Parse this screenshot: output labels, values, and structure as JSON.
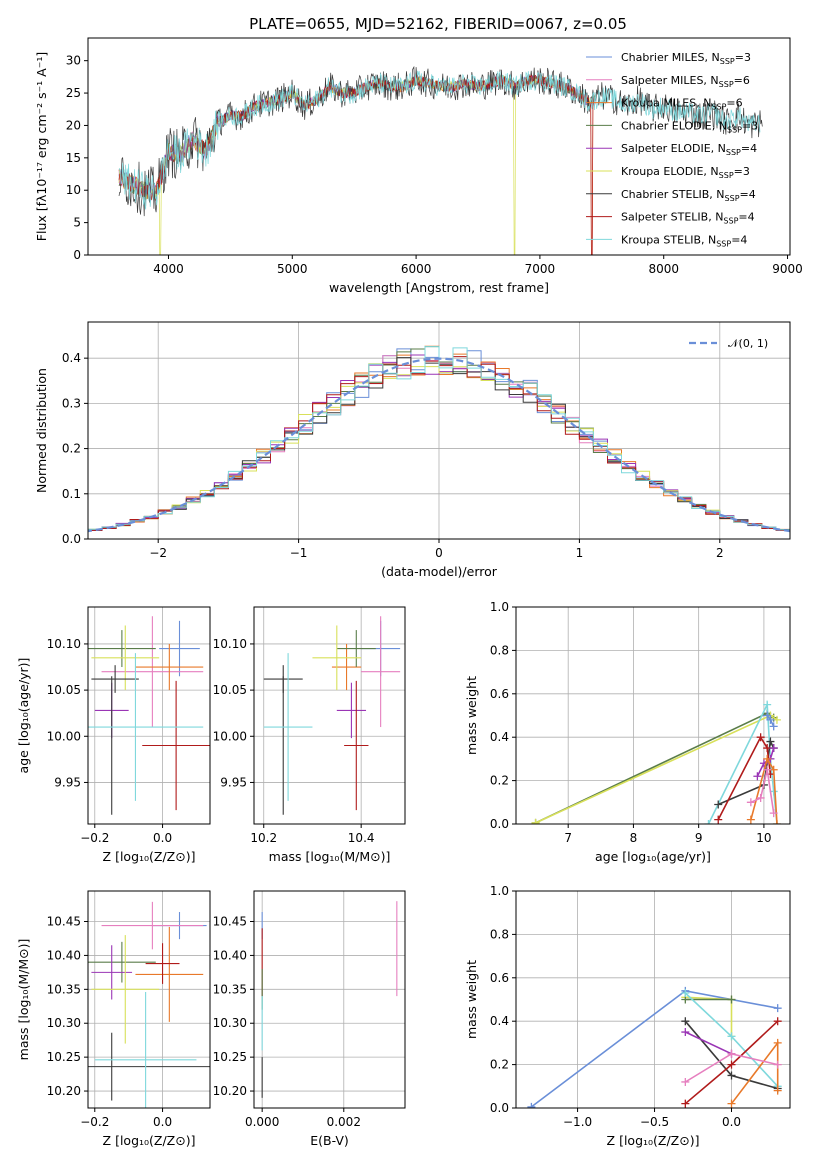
{
  "figure_title": "PLATE=0655, MJD=52162, FIBERID=0067, z=0.05",
  "colors": {
    "chabrier_miles": "#6a8fd8",
    "salpeter_miles": "#e67fbf",
    "kroupa_miles": "#e8792a",
    "chabrier_elodie": "#5a7d4a",
    "salpeter_elodie": "#9a35b5",
    "kroupa_elodie": "#d8e05a",
    "chabrier_stelib": "#3a3a3a",
    "salpeter_stelib": "#b01b1b",
    "kroupa_stelib": "#7fd8dc",
    "grid": "#b0b0b0"
  },
  "chart_data": [
    {
      "id": "spectrum",
      "type": "line",
      "xlabel": "wavelength [Angstrom, rest frame]",
      "ylabel": "Flux [fλ10⁻¹⁷ erg cm⁻² s⁻¹ A⁻¹]",
      "xlim": [
        3350,
        9020
      ],
      "ylim": [
        0,
        33.5
      ],
      "xticks": [
        "4000",
        "5000",
        "6000",
        "7000",
        "8000",
        "9000"
      ],
      "yticks": [
        "0",
        "5",
        "10",
        "15",
        "20",
        "25",
        "30"
      ],
      "grid": false,
      "legend_position": "top-right",
      "legend": [
        {
          "label": "Chabrier MILES, N",
          "sub": "SSP",
          "tail": "=3",
          "color_key": "chabrier_miles"
        },
        {
          "label": "Salpeter MILES, N",
          "sub": "SSP",
          "tail": "=6",
          "color_key": "salpeter_miles"
        },
        {
          "label": "Kroupa MILES, N",
          "sub": "SSP",
          "tail": "=6",
          "color_key": "kroupa_miles"
        },
        {
          "label": "Chabrier ELODIE, N",
          "sub": "SSP",
          "tail": "=3",
          "color_key": "chabrier_elodie"
        },
        {
          "label": "Salpeter ELODIE, N",
          "sub": "SSP",
          "tail": "=4",
          "color_key": "salpeter_elodie"
        },
        {
          "label": "Kroupa ELODIE, N",
          "sub": "SSP",
          "tail": "=3",
          "color_key": "kroupa_elodie"
        },
        {
          "label": "Chabrier STELIB, N",
          "sub": "SSP",
          "tail": "=4",
          "color_key": "chabrier_stelib"
        },
        {
          "label": "Salpeter STELIB, N",
          "sub": "SSP",
          "tail": "=4",
          "color_key": "salpeter_stelib"
        },
        {
          "label": "Kroupa STELIB, N",
          "sub": "SSP",
          "tail": "=4",
          "color_key": "kroupa_stelib"
        }
      ],
      "envelope_x": [
        3600,
        3700,
        3800,
        3900,
        4000,
        4100,
        4200,
        4300,
        4400,
        4500,
        4600,
        4700,
        4800,
        4900,
        5000,
        5100,
        5200,
        5300,
        5400,
        5500,
        5600,
        5700,
        5800,
        5900,
        6000,
        6100,
        6200,
        6300,
        6400,
        6500,
        6600,
        6700,
        6800,
        6900,
        7000,
        7100,
        7200,
        7300,
        7400,
        7500,
        7600,
        7700,
        7800,
        7900,
        8000,
        8100,
        8200,
        8300,
        8400,
        8500,
        8600,
        8700,
        8800
      ],
      "envelope_y": [
        12,
        11,
        10,
        9.5,
        16,
        15.5,
        18,
        16,
        20.5,
        21.5,
        21.5,
        23,
        23.5,
        24,
        25,
        23,
        24,
        26,
        25,
        25,
        26,
        26.5,
        26,
        26,
        27,
        26.5,
        26,
        26,
        26.5,
        26,
        26.5,
        27,
        26,
        27,
        27,
        26.5,
        26,
        25,
        23.5,
        24.5,
        24,
        23,
        24,
        22.5,
        23,
        22,
        22,
        21.5,
        22,
        20.5,
        21.5,
        20,
        20.5
      ],
      "dips": [
        {
          "x": 3933,
          "y": 0
        },
        {
          "x": 6795,
          "y": 0
        },
        {
          "x": 7420,
          "y": 0
        }
      ]
    },
    {
      "id": "residuals",
      "type": "histogram",
      "xlabel": "(data-model)/error",
      "ylabel": "Normed distribution",
      "xlim": [
        -2.5,
        2.5
      ],
      "ylim": [
        0,
        0.48
      ],
      "xticks": [
        "−2",
        "−1",
        "0",
        "1",
        "2"
      ],
      "yticks": [
        "0.0",
        "0.1",
        "0.2",
        "0.3",
        "0.4"
      ],
      "grid": true,
      "legend_position": "top-right",
      "legend": [
        {
          "label": "𝒩(0, 1)",
          "color_key": "chabrier_miles"
        }
      ],
      "bin_width": 0.1,
      "overlay_max": 0.455
    },
    {
      "id": "age_vs_Z",
      "type": "errorbar",
      "xlabel": "Z [log₁₀(Z/Z⊙)]",
      "ylabel": "age  [log₁₀(age/yr)]",
      "xlim": [
        -0.22,
        0.14
      ],
      "ylim": [
        9.905,
        10.14
      ],
      "xticks": [
        "−0.2",
        "0.0"
      ],
      "yticks": [
        "9.95",
        "10.00",
        "10.05",
        "10.10"
      ],
      "grid": true,
      "points": [
        {
          "k": "chabrier_miles",
          "x": 0.05,
          "y": 10.095,
          "xe": 0.06,
          "ye": 0.03
        },
        {
          "k": "salpeter_miles",
          "x": -0.03,
          "y": 10.07,
          "xe": 0.15,
          "ye": 0.06
        },
        {
          "k": "kroupa_miles",
          "x": 0.02,
          "y": 10.075,
          "xe": 0.1,
          "ye": 0.025
        },
        {
          "k": "chabrier_elodie",
          "x": -0.12,
          "y": 10.095,
          "xe": 0.1,
          "ye": 0.02
        },
        {
          "k": "salpeter_elodie",
          "x": -0.15,
          "y": 10.028,
          "xe": 0.05,
          "ye": 0.03
        },
        {
          "k": "kroupa_elodie",
          "x": -0.11,
          "y": 10.085,
          "xe": 0.1,
          "ye": 0.035
        },
        {
          "k": "chabrier_stelib",
          "x": -0.14,
          "y": 10.062,
          "xe": 0.07,
          "ye": 0.015
        },
        {
          "k": "chabrier_stelib",
          "x": -0.15,
          "y": 9.99,
          "xe": 0.0,
          "ye": 0.075
        },
        {
          "k": "salpeter_stelib",
          "x": 0.04,
          "y": 9.99,
          "xe": 0.1,
          "ye": 0.07
        },
        {
          "k": "kroupa_stelib",
          "x": -0.08,
          "y": 10.01,
          "xe": 0.2,
          "ye": 0.08
        }
      ]
    },
    {
      "id": "age_vs_mass",
      "type": "errorbar",
      "xlabel": "mass [log₁₀(M/M⊙)]",
      "ylabel": "",
      "xlim": [
        10.18,
        10.49
      ],
      "ylim": [
        9.905,
        10.14
      ],
      "xticks": [
        "10.2",
        "10.4"
      ],
      "yticks": [
        "9.95",
        "10.00",
        "10.05",
        "10.10"
      ],
      "grid": true,
      "points": [
        {
          "k": "chabrier_miles",
          "x": 10.44,
          "y": 10.095,
          "xe": 0.04,
          "ye": 0.03
        },
        {
          "k": "salpeter_miles",
          "x": 10.44,
          "y": 10.07,
          "xe": 0.04,
          "ye": 0.06
        },
        {
          "k": "kroupa_miles",
          "x": 10.37,
          "y": 10.075,
          "xe": 0.03,
          "ye": 0.025
        },
        {
          "k": "chabrier_elodie",
          "x": 10.39,
          "y": 10.095,
          "xe": 0.04,
          "ye": 0.02
        },
        {
          "k": "salpeter_elodie",
          "x": 10.38,
          "y": 10.028,
          "xe": 0.03,
          "ye": 0.03
        },
        {
          "k": "kroupa_elodie",
          "x": 10.35,
          "y": 10.085,
          "xe": 0.05,
          "ye": 0.035
        },
        {
          "k": "chabrier_stelib",
          "x": 10.24,
          "y": 10.062,
          "xe": 0.04,
          "ye": 0.015
        },
        {
          "k": "chabrier_stelib",
          "x": 10.24,
          "y": 9.99,
          "xe": 0.0,
          "ye": 0.075
        },
        {
          "k": "salpeter_stelib",
          "x": 10.39,
          "y": 9.99,
          "xe": 0.025,
          "ye": 0.07
        },
        {
          "k": "kroupa_stelib",
          "x": 10.25,
          "y": 10.01,
          "xe": 0.05,
          "ye": 0.08
        }
      ]
    },
    {
      "id": "weight_vs_age",
      "type": "line",
      "xlabel": "age  [log₁₀(age/yr)]",
      "ylabel": "mass weight",
      "xlim": [
        6.2,
        10.4
      ],
      "ylim": [
        0,
        1
      ],
      "xticks": [
        "7",
        "8",
        "9",
        "10"
      ],
      "yticks": [
        "0.0",
        "0.2",
        "0.4",
        "0.6",
        "0.8",
        "1.0"
      ],
      "grid": true,
      "series": [
        {
          "k": "chabrier_elodie",
          "x": [
            6.5,
            10.05,
            10.15
          ],
          "y": [
            0.005,
            0.51,
            0.49
          ]
        },
        {
          "k": "kroupa_elodie",
          "x": [
            6.5,
            10.1,
            10.2
          ],
          "y": [
            0.005,
            0.5,
            0.48
          ]
        },
        {
          "k": "kroupa_stelib",
          "x": [
            9.15,
            10.05,
            10.1,
            10.15,
            10.2
          ],
          "y": [
            0.0,
            0.55,
            0.3,
            0.15,
            0.0
          ]
        },
        {
          "k": "chabrier_stelib",
          "x": [
            9.3,
            10.0,
            10.1,
            10.15
          ],
          "y": [
            0.09,
            0.18,
            0.38,
            0.35
          ]
        },
        {
          "k": "salpeter_stelib",
          "x": [
            9.3,
            9.95,
            10.05,
            10.1
          ],
          "y": [
            0.02,
            0.4,
            0.35,
            0.23
          ]
        },
        {
          "k": "salpeter_elodie",
          "x": [
            9.9,
            10.0,
            10.1,
            10.15
          ],
          "y": [
            0.22,
            0.28,
            0.3,
            0.35
          ]
        },
        {
          "k": "kroupa_miles",
          "x": [
            9.8,
            10.05,
            10.15,
            10.2
          ],
          "y": [
            0.02,
            0.3,
            0.25,
            0.0
          ]
        },
        {
          "k": "salpeter_miles",
          "x": [
            9.8,
            9.95,
            10.05,
            10.15
          ],
          "y": [
            0.1,
            0.12,
            0.25,
            0.05
          ]
        },
        {
          "k": "chabrier_miles",
          "x": [
            10.05,
            10.1,
            10.15
          ],
          "y": [
            0.5,
            0.48,
            0.45
          ]
        }
      ]
    },
    {
      "id": "mass_vs_Z",
      "type": "errorbar",
      "xlabel": "Z [log₁₀(Z/Z⊙)]",
      "ylabel": "mass [log₁₀(M/M⊙)]",
      "xlim": [
        -0.22,
        0.14
      ],
      "ylim": [
        10.175,
        10.495
      ],
      "xticks": [
        "−0.2",
        "0.0"
      ],
      "yticks": [
        "10.20",
        "10.25",
        "10.30",
        "10.35",
        "10.40",
        "10.45"
      ],
      "grid": true,
      "points": [
        {
          "k": "chabrier_miles",
          "x": 0.05,
          "y": 10.444,
          "xe": 0.08,
          "ye": 0.02
        },
        {
          "k": "salpeter_miles",
          "x": -0.03,
          "y": 10.444,
          "xe": 0.15,
          "ye": 0.035
        },
        {
          "k": "kroupa_miles",
          "x": 0.02,
          "y": 10.372,
          "xe": 0.1,
          "ye": 0.07
        },
        {
          "k": "chabrier_elodie",
          "x": -0.12,
          "y": 10.39,
          "xe": 0.1,
          "ye": 0.03
        },
        {
          "k": "salpeter_elodie",
          "x": -0.15,
          "y": 10.375,
          "xe": 0.06,
          "ye": 0.04
        },
        {
          "k": "kroupa_elodie",
          "x": -0.11,
          "y": 10.35,
          "xe": 0.1,
          "ye": 0.08
        },
        {
          "k": "chabrier_stelib",
          "x": -0.05,
          "y": 10.236,
          "xe": 0.25,
          "ye": 0.0
        },
        {
          "k": "chabrier_stelib",
          "x": -0.15,
          "y": 10.236,
          "xe": 0.0,
          "ye": 0.05
        },
        {
          "k": "salpeter_stelib",
          "x": 0.0,
          "y": 10.388,
          "xe": 0.05,
          "ye": 0.03
        },
        {
          "k": "kroupa_stelib",
          "x": -0.05,
          "y": 10.246,
          "xe": 0.15,
          "ye": 0.1
        }
      ]
    },
    {
      "id": "mass_vs_ebv",
      "type": "errorbar",
      "xlabel": "E(B-V)",
      "ylabel": "",
      "xlim": [
        -0.0002,
        0.0035
      ],
      "ylim": [
        10.175,
        10.495
      ],
      "xticks": [
        "0.000",
        "0.002"
      ],
      "yticks": [
        "10.20",
        "10.25",
        "10.30",
        "10.35",
        "10.40",
        "10.45"
      ],
      "grid": true,
      "points": [
        {
          "k": "chabrier_miles",
          "x": 0.0,
          "y": 10.444,
          "xe": 0.0,
          "ye": 0.02
        },
        {
          "k": "salpeter_miles",
          "x": 0.0033,
          "y": 10.41,
          "xe": 0.0,
          "ye": 0.07
        },
        {
          "k": "salpeter_stelib",
          "x": 0.0,
          "y": 10.39,
          "xe": 0.0,
          "ye": 0.05
        },
        {
          "k": "chabrier_elodie",
          "x": 0.0,
          "y": 10.35,
          "xe": 0.0,
          "ye": 0.03
        },
        {
          "k": "kroupa_stelib",
          "x": 0.0,
          "y": 10.3,
          "xe": 0.0,
          "ye": 0.04
        },
        {
          "k": "chabrier_stelib",
          "x": 0.0,
          "y": 10.22,
          "xe": 0.0,
          "ye": 0.03
        }
      ]
    },
    {
      "id": "weight_vs_Z",
      "type": "line",
      "xlabel": "Z [log₁₀(Z/Z⊙)]",
      "ylabel": "mass weight",
      "xlim": [
        -1.4,
        0.38
      ],
      "ylim": [
        0,
        1
      ],
      "xticks": [
        "−1.0",
        "−0.5",
        "0.0"
      ],
      "yticks": [
        "0.0",
        "0.2",
        "0.4",
        "0.6",
        "0.8",
        "1.0"
      ],
      "grid": true,
      "series": [
        {
          "k": "chabrier_miles",
          "x": [
            -1.3,
            -0.3,
            0.3
          ],
          "y": [
            0.005,
            0.54,
            0.46
          ]
        },
        {
          "k": "kroupa_elodie",
          "x": [
            -0.3,
            0.0,
            0.0
          ],
          "y": [
            0.51,
            0.5,
            0.33
          ]
        },
        {
          "k": "chabrier_elodie",
          "x": [
            -0.3,
            0.0
          ],
          "y": [
            0.5,
            0.5
          ]
        },
        {
          "k": "kroupa_stelib",
          "x": [
            -0.3,
            0.0,
            0.3
          ],
          "y": [
            0.53,
            0.33,
            0.1
          ]
        },
        {
          "k": "chabrier_stelib",
          "x": [
            -0.3,
            0.0,
            0.3
          ],
          "y": [
            0.4,
            0.15,
            0.09
          ]
        },
        {
          "k": "salpeter_stelib",
          "x": [
            -0.3,
            0.0,
            0.3
          ],
          "y": [
            0.02,
            0.2,
            0.4
          ]
        },
        {
          "k": "salpeter_elodie",
          "x": [
            -0.3,
            0.0
          ],
          "y": [
            0.35,
            0.25
          ]
        },
        {
          "k": "kroupa_miles",
          "x": [
            0.0,
            0.3,
            0.3
          ],
          "y": [
            0.02,
            0.3,
            0.08
          ]
        },
        {
          "k": "salpeter_miles",
          "x": [
            -0.3,
            0.0,
            0.3
          ],
          "y": [
            0.12,
            0.25,
            0.2
          ]
        }
      ]
    }
  ]
}
